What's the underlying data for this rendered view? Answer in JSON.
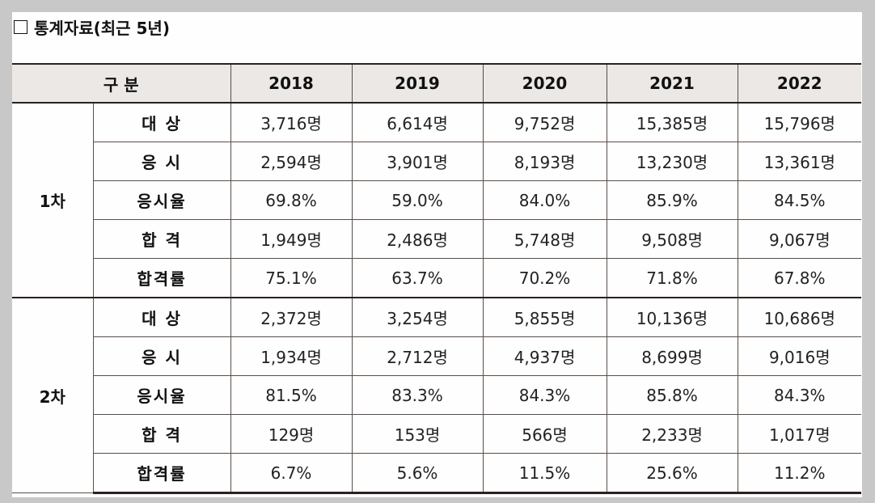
{
  "title": "통계자료(최근 5년)",
  "header": {
    "category": "구 분",
    "years": [
      "2018",
      "2019",
      "2020",
      "2021",
      "2022"
    ]
  },
  "groups": [
    {
      "name": "1차",
      "rows": [
        {
          "label": "대 상",
          "values": [
            "3,716명",
            "6,614명",
            "9,752명",
            "15,385명",
            "15,796명"
          ]
        },
        {
          "label": "응 시",
          "values": [
            "2,594명",
            "3,901명",
            "8,193명",
            "13,230명",
            "13,361명"
          ]
        },
        {
          "label": "응시율",
          "values": [
            "69.8%",
            "59.0%",
            "84.0%",
            "85.9%",
            "84.5%"
          ]
        },
        {
          "label": "합 격",
          "values": [
            "1,949명",
            "2,486명",
            "5,748명",
            "9,508명",
            "9,067명"
          ]
        },
        {
          "label": "합격률",
          "values": [
            "75.1%",
            "63.7%",
            "70.2%",
            "71.8%",
            "67.8%"
          ]
        }
      ]
    },
    {
      "name": "2차",
      "rows": [
        {
          "label": "대 상",
          "values": [
            "2,372명",
            "3,254명",
            "5,855명",
            "10,136명",
            "10,686명"
          ]
        },
        {
          "label": "응 시",
          "values": [
            "1,934명",
            "2,712명",
            "4,937명",
            "8,699명",
            "9,016명"
          ]
        },
        {
          "label": "응시율",
          "values": [
            "81.5%",
            "83.3%",
            "84.3%",
            "85.8%",
            "84.3%"
          ]
        },
        {
          "label": "합 격",
          "values": [
            "129명",
            "153명",
            "566명",
            "2,233명",
            "1,017명"
          ]
        },
        {
          "label": "합격률",
          "values": [
            "6.7%",
            "5.6%",
            "11.5%",
            "25.6%",
            "11.2%"
          ]
        }
      ]
    }
  ]
}
